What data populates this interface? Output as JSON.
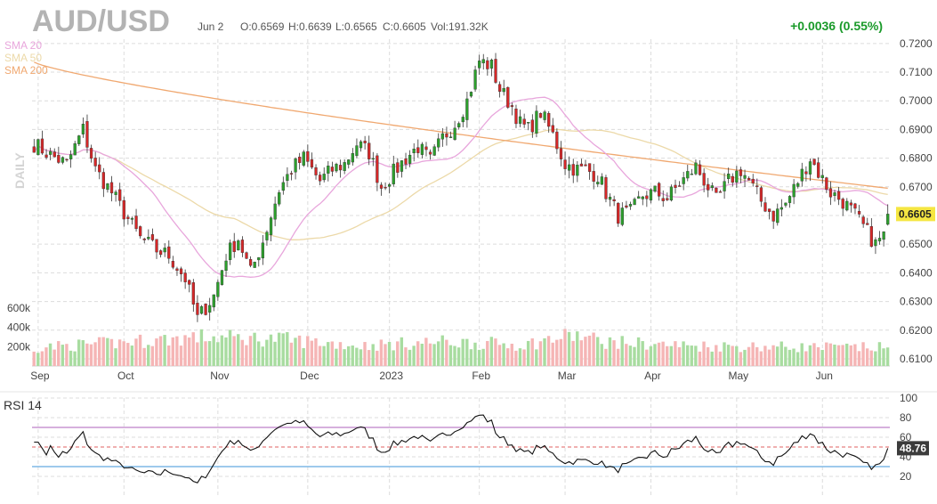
{
  "header": {
    "symbol": "AUD/USD",
    "date": "Jun 2",
    "open": "O:0.6569",
    "high": "H:0.6639",
    "low": "L:0.6565",
    "close": "C:0.6605",
    "volume": "Vol:191.32K",
    "change": "+0.0036 (0.55%)"
  },
  "indicators": {
    "sma20_label": "SMA 20",
    "sma50_label": "SMA 50",
    "sma200_label": "SMA 200",
    "sma20_color": "#e8a6dc",
    "sma50_color": "#ecd9a8",
    "sma200_color": "#f0a870",
    "timeframe_label": "DAILY"
  },
  "price_axis": {
    "labels": [
      "0.7200",
      "0.7100",
      "0.7000",
      "0.6900",
      "0.6800",
      "0.6700",
      "0.6600",
      "0.6500",
      "0.6400",
      "0.6300",
      "0.6200",
      "0.6100"
    ],
    "last_price": "0.6605",
    "last_price_bg": "#f5e642"
  },
  "volume_axis": {
    "labels": [
      "600k",
      "400k",
      "200k"
    ]
  },
  "time_axis": {
    "labels": [
      "Sep",
      "Oct",
      "Nov",
      "Dec",
      "2023",
      "Feb",
      "Mar",
      "Apr",
      "May",
      "Jun"
    ]
  },
  "rsi": {
    "title": "RSI 14",
    "labels": [
      "100",
      "80",
      "60",
      "40",
      "20"
    ],
    "last_value": "48.76",
    "overbought_color": "#c896d2",
    "oversold_color": "#7fb9e6",
    "mid_color": "#e06060"
  },
  "colors": {
    "up": "#2ca02c",
    "down": "#d62728",
    "vol_up": "#a8dca0",
    "vol_down": "#f5b5b5",
    "grid": "#dcdcdc"
  },
  "chart_data": {
    "type": "candlestick",
    "title": "AUD/USD",
    "y_range": [
      0.6075,
      0.7215
    ],
    "volume_range": [
      0,
      700000
    ],
    "rsi_range": [
      0,
      100
    ],
    "rsi_levels": [
      30,
      50,
      70
    ],
    "x_ticks": [
      "Sep",
      "Oct",
      "Nov",
      "Dec",
      "2023",
      "Feb",
      "Mar",
      "Apr",
      "May",
      "Jun"
    ],
    "x_tick_index": [
      1,
      22,
      45,
      67,
      87,
      109,
      130,
      151,
      172,
      193
    ],
    "anchors": [
      [
        0,
        0.685
      ],
      [
        4,
        0.681
      ],
      [
        8,
        0.678
      ],
      [
        12,
        0.69
      ],
      [
        15,
        0.676
      ],
      [
        19,
        0.668
      ],
      [
        22,
        0.661
      ],
      [
        26,
        0.652
      ],
      [
        30,
        0.648
      ],
      [
        33,
        0.646
      ],
      [
        37,
        0.638
      ],
      [
        40,
        0.624
      ],
      [
        42,
        0.628
      ],
      [
        44,
        0.632
      ],
      [
        47,
        0.646
      ],
      [
        50,
        0.652
      ],
      [
        53,
        0.64
      ],
      [
        56,
        0.651
      ],
      [
        60,
        0.669
      ],
      [
        63,
        0.676
      ],
      [
        66,
        0.68
      ],
      [
        70,
        0.672
      ],
      [
        73,
        0.676
      ],
      [
        76,
        0.678
      ],
      [
        79,
        0.685
      ],
      [
        82,
        0.682
      ],
      [
        85,
        0.67
      ],
      [
        88,
        0.675
      ],
      [
        91,
        0.68
      ],
      [
        94,
        0.684
      ],
      [
        97,
        0.679
      ],
      [
        100,
        0.687
      ],
      [
        103,
        0.692
      ],
      [
        106,
        0.7
      ],
      [
        109,
        0.714
      ],
      [
        112,
        0.712
      ],
      [
        114,
        0.704
      ],
      [
        117,
        0.698
      ],
      [
        119,
        0.692
      ],
      [
        121,
        0.69
      ],
      [
        124,
        0.696
      ],
      [
        127,
        0.688
      ],
      [
        130,
        0.678
      ],
      [
        133,
        0.676
      ],
      [
        135,
        0.676
      ],
      [
        138,
        0.674
      ],
      [
        140,
        0.668
      ],
      [
        143,
        0.66
      ],
      [
        146,
        0.661
      ],
      [
        149,
        0.667
      ],
      [
        152,
        0.668
      ],
      [
        155,
        0.666
      ],
      [
        158,
        0.671
      ],
      [
        162,
        0.677
      ],
      [
        165,
        0.67
      ],
      [
        167,
        0.665
      ],
      [
        170,
        0.672
      ],
      [
        173,
        0.676
      ],
      [
        175,
        0.672
      ],
      [
        178,
        0.665
      ],
      [
        181,
        0.66
      ],
      [
        184,
        0.664
      ],
      [
        187,
        0.672
      ],
      [
        190,
        0.68
      ],
      [
        192,
        0.675
      ],
      [
        195,
        0.668
      ],
      [
        198,
        0.665
      ],
      [
        201,
        0.66
      ],
      [
        204,
        0.654
      ],
      [
        206,
        0.65
      ],
      [
        208,
        0.653
      ],
      [
        209,
        0.6605
      ]
    ],
    "volume_anchors": [
      [
        0,
        190000
      ],
      [
        20,
        240000
      ],
      [
        40,
        300000
      ],
      [
        60,
        280000
      ],
      [
        80,
        210000
      ],
      [
        100,
        250000
      ],
      [
        120,
        220000
      ],
      [
        132,
        320000
      ],
      [
        140,
        250000
      ],
      [
        160,
        210000
      ],
      [
        180,
        200000
      ],
      [
        200,
        190000
      ],
      [
        209,
        191320
      ]
    ],
    "rsi_last": 48.76,
    "close": 0.6605,
    "open": 0.6569,
    "high": 0.6639,
    "low": 0.6565,
    "volume": 191320
  }
}
